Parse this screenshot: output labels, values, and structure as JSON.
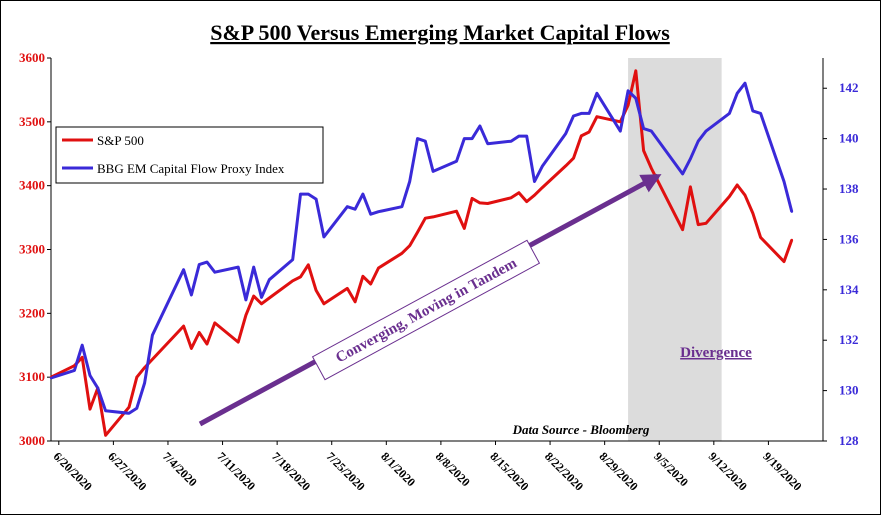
{
  "chart_data": {
    "type": "line",
    "title": "S&P 500 Versus Emerging Market Capital Flows",
    "source": "Data Source - Bloomberg",
    "x_tick_labels": [
      "6/20/2020",
      "6/27/2020",
      "7/4/2020",
      "7/11/2020",
      "7/18/2020",
      "7/25/2020",
      "8/1/2020",
      "8/8/2020",
      "8/15/2020",
      "8/22/2020",
      "8/29/2020",
      "9/5/2020",
      "9/12/2020",
      "9/19/2020"
    ],
    "x_range": [
      "2020-06-19",
      "2020-09-26"
    ],
    "y_left": {
      "range": [
        3000,
        3600
      ],
      "ticks": [
        3000,
        3100,
        3200,
        3300,
        3400,
        3500,
        3600
      ],
      "color": "#e01010"
    },
    "y_right": {
      "range": [
        128,
        143.2
      ],
      "ticks": [
        128,
        130,
        132,
        134,
        136,
        138,
        140,
        142
      ],
      "color": "#3a2ad8"
    },
    "grid": false,
    "legend_position": "upper-left",
    "annotations": {
      "arrow_label": "Converging, Moving in Tandem",
      "shaded_label": "Divergence",
      "shaded_range": [
        "2020-09-01",
        "2020-09-13"
      ]
    },
    "series": [
      {
        "name": "S&P 500",
        "axis": "left",
        "color": "#e01010",
        "points": [
          [
            "2020-06-19",
            3100
          ],
          [
            "2020-06-22",
            3118
          ],
          [
            "2020-06-23",
            3131
          ],
          [
            "2020-06-24",
            3050
          ],
          [
            "2020-06-25",
            3083
          ],
          [
            "2020-06-26",
            3009
          ],
          [
            "2020-06-29",
            3053
          ],
          [
            "2020-06-30",
            3100
          ],
          [
            "2020-07-01",
            3115
          ],
          [
            "2020-07-06",
            3180
          ],
          [
            "2020-07-07",
            3145
          ],
          [
            "2020-07-08",
            3170
          ],
          [
            "2020-07-09",
            3152
          ],
          [
            "2020-07-10",
            3185
          ],
          [
            "2020-07-13",
            3155
          ],
          [
            "2020-07-14",
            3197
          ],
          [
            "2020-07-15",
            3227
          ],
          [
            "2020-07-16",
            3215
          ],
          [
            "2020-07-17",
            3224
          ],
          [
            "2020-07-20",
            3251
          ],
          [
            "2020-07-21",
            3257
          ],
          [
            "2020-07-22",
            3276
          ],
          [
            "2020-07-23",
            3236
          ],
          [
            "2020-07-24",
            3215
          ],
          [
            "2020-07-27",
            3239
          ],
          [
            "2020-07-28",
            3218
          ],
          [
            "2020-07-29",
            3258
          ],
          [
            "2020-07-30",
            3246
          ],
          [
            "2020-07-31",
            3271
          ],
          [
            "2020-08-03",
            3294
          ],
          [
            "2020-08-04",
            3306
          ],
          [
            "2020-08-05",
            3327
          ],
          [
            "2020-08-06",
            3349
          ],
          [
            "2020-08-07",
            3351
          ],
          [
            "2020-08-10",
            3360
          ],
          [
            "2020-08-11",
            3333
          ],
          [
            "2020-08-12",
            3380
          ],
          [
            "2020-08-13",
            3373
          ],
          [
            "2020-08-14",
            3372
          ],
          [
            "2020-08-17",
            3381
          ],
          [
            "2020-08-18",
            3389
          ],
          [
            "2020-08-19",
            3375
          ],
          [
            "2020-08-20",
            3385
          ],
          [
            "2020-08-21",
            3397
          ],
          [
            "2020-08-24",
            3431
          ],
          [
            "2020-08-25",
            3443
          ],
          [
            "2020-08-26",
            3478
          ],
          [
            "2020-08-27",
            3484
          ],
          [
            "2020-08-28",
            3508
          ],
          [
            "2020-08-31",
            3500
          ],
          [
            "2020-09-01",
            3526
          ],
          [
            "2020-09-02",
            3580
          ],
          [
            "2020-09-03",
            3455
          ],
          [
            "2020-09-04",
            3427
          ],
          [
            "2020-09-08",
            3331
          ],
          [
            "2020-09-09",
            3398
          ],
          [
            "2020-09-10",
            3339
          ],
          [
            "2020-09-11",
            3341
          ],
          [
            "2020-09-14",
            3383
          ],
          [
            "2020-09-15",
            3401
          ],
          [
            "2020-09-16",
            3385
          ],
          [
            "2020-09-17",
            3357
          ],
          [
            "2020-09-18",
            3319
          ],
          [
            "2020-09-21",
            3281
          ],
          [
            "2020-09-22",
            3315
          ]
        ]
      },
      {
        "name": "BBG EM Capital Flow Proxy Index",
        "axis": "right",
        "color": "#3a2ad8",
        "points": [
          [
            "2020-06-19",
            130.5
          ],
          [
            "2020-06-22",
            130.8
          ],
          [
            "2020-06-23",
            131.8
          ],
          [
            "2020-06-24",
            130.6
          ],
          [
            "2020-06-25",
            130.1
          ],
          [
            "2020-06-26",
            129.2
          ],
          [
            "2020-06-29",
            129.1
          ],
          [
            "2020-06-30",
            129.3
          ],
          [
            "2020-07-01",
            130.3
          ],
          [
            "2020-07-02",
            132.2
          ],
          [
            "2020-07-06",
            134.8
          ],
          [
            "2020-07-07",
            133.8
          ],
          [
            "2020-07-08",
            135.0
          ],
          [
            "2020-07-09",
            135.1
          ],
          [
            "2020-07-10",
            134.7
          ],
          [
            "2020-07-13",
            134.9
          ],
          [
            "2020-07-14",
            133.6
          ],
          [
            "2020-07-15",
            134.9
          ],
          [
            "2020-07-16",
            133.7
          ],
          [
            "2020-07-17",
            134.4
          ],
          [
            "2020-07-20",
            135.2
          ],
          [
            "2020-07-21",
            137.8
          ],
          [
            "2020-07-22",
            137.8
          ],
          [
            "2020-07-23",
            137.6
          ],
          [
            "2020-07-24",
            136.1
          ],
          [
            "2020-07-27",
            137.3
          ],
          [
            "2020-07-28",
            137.2
          ],
          [
            "2020-07-29",
            137.8
          ],
          [
            "2020-07-30",
            137.0
          ],
          [
            "2020-07-31",
            137.1
          ],
          [
            "2020-08-03",
            137.3
          ],
          [
            "2020-08-04",
            138.3
          ],
          [
            "2020-08-05",
            140.0
          ],
          [
            "2020-08-06",
            139.9
          ],
          [
            "2020-08-07",
            138.7
          ],
          [
            "2020-08-10",
            139.1
          ],
          [
            "2020-08-11",
            140.0
          ],
          [
            "2020-08-12",
            140.0
          ],
          [
            "2020-08-13",
            140.5
          ],
          [
            "2020-08-14",
            139.8
          ],
          [
            "2020-08-17",
            139.9
          ],
          [
            "2020-08-18",
            140.1
          ],
          [
            "2020-08-19",
            140.1
          ],
          [
            "2020-08-20",
            138.3
          ],
          [
            "2020-08-21",
            138.9
          ],
          [
            "2020-08-24",
            140.2
          ],
          [
            "2020-08-25",
            140.9
          ],
          [
            "2020-08-26",
            141.0
          ],
          [
            "2020-08-27",
            141.0
          ],
          [
            "2020-08-28",
            141.8
          ],
          [
            "2020-08-31",
            140.3
          ],
          [
            "2020-09-01",
            141.9
          ],
          [
            "2020-09-02",
            141.6
          ],
          [
            "2020-09-03",
            140.4
          ],
          [
            "2020-09-04",
            140.3
          ],
          [
            "2020-09-08",
            138.6
          ],
          [
            "2020-09-09",
            139.2
          ],
          [
            "2020-09-10",
            139.9
          ],
          [
            "2020-09-11",
            140.3
          ],
          [
            "2020-09-14",
            141.0
          ],
          [
            "2020-09-15",
            141.8
          ],
          [
            "2020-09-16",
            142.2
          ],
          [
            "2020-09-17",
            141.1
          ],
          [
            "2020-09-18",
            141.0
          ],
          [
            "2020-09-21",
            138.3
          ],
          [
            "2020-09-22",
            137.1
          ]
        ]
      }
    ]
  }
}
